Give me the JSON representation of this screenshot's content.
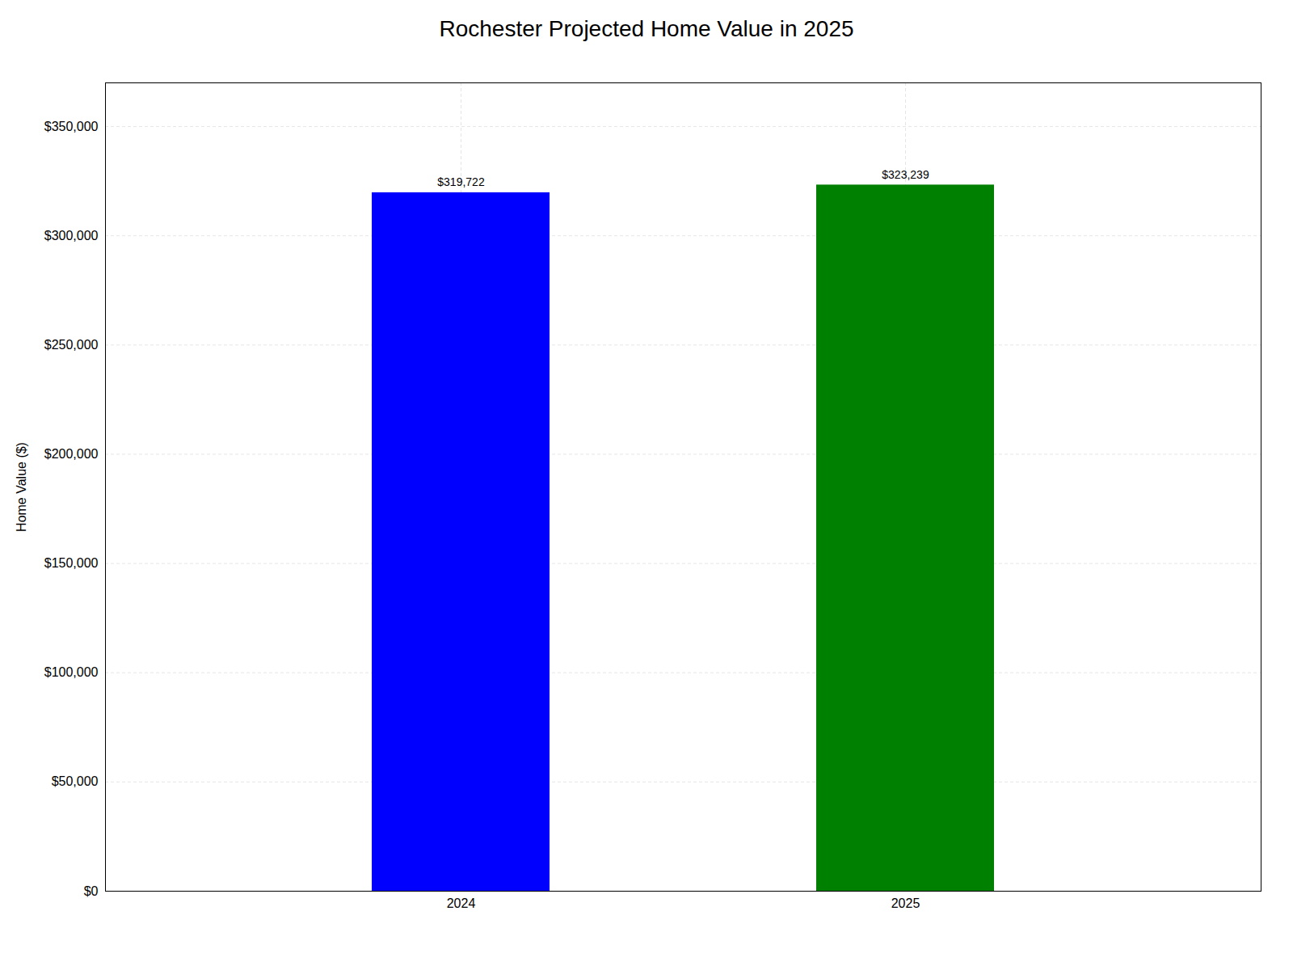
{
  "chart_data": {
    "type": "bar",
    "title": "Rochester Projected Home Value in 2025",
    "ylabel": "Home Value ($)",
    "categories": [
      "2024",
      "2025"
    ],
    "values": [
      319722,
      323239
    ],
    "value_labels": [
      "$319,722",
      "$323,239"
    ],
    "data_labels": true,
    "colors": [
      "#0000ff",
      "#008000"
    ],
    "ylim": [
      0,
      370000
    ],
    "yticks": [
      {
        "value": 0,
        "label": "$0"
      },
      {
        "value": 50000,
        "label": "$50,000"
      },
      {
        "value": 100000,
        "label": "$100,000"
      },
      {
        "value": 150000,
        "label": "$150,000"
      },
      {
        "value": 200000,
        "label": "$200,000"
      },
      {
        "value": 250000,
        "label": "$250,000"
      },
      {
        "value": 300000,
        "label": "$300,000"
      },
      {
        "value": 350000,
        "label": "$350,000"
      }
    ],
    "grid": true
  }
}
